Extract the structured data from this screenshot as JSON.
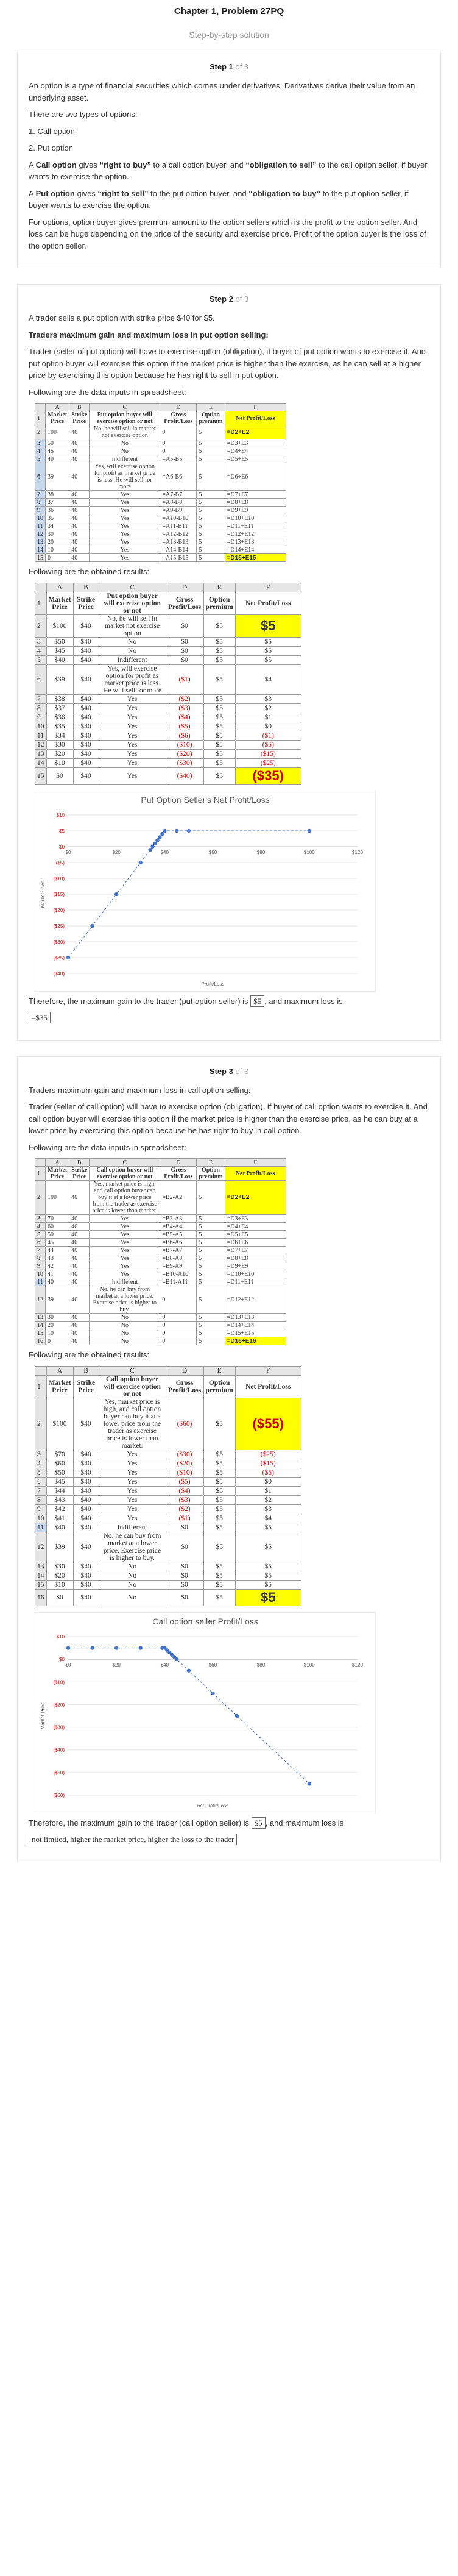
{
  "header": {
    "title": "Chapter 1, Problem 27PQ",
    "subtitle": "Step-by-step solution"
  },
  "step1": {
    "label": "Step 1",
    "of": "of 3",
    "p1": "An option is a type of financial securities which comes under derivatives. Derivatives derive their value from an underlying asset.",
    "p2": "There are two types of options:",
    "p3": "1. Call option",
    "p4": "2. Put option",
    "p5a": "A ",
    "p5b": "Call option",
    "p5c": " gives ",
    "p5d": "“right to buy”",
    "p5e": " to a call option buyer, and ",
    "p5f": "“obligation to sell”",
    "p5g": " to the call option seller, if buyer wants to exercise the option.",
    "p6a": "A ",
    "p6b": "Put option",
    "p6c": " gives ",
    "p6d": "“right to sell”",
    "p6e": " to the put option buyer, and ",
    "p6f": "“obligation to buy”",
    "p6g": " to the put option seller, if buyer wants to exercise the option.",
    "p7": "For options, option buyer gives premium amount to the option sellers which is the profit to the option seller. And loss can be huge depending on the price of the security and exercise price. Profit of the option buyer is the loss of the option seller."
  },
  "step2": {
    "label": "Step 2",
    "of": "of 3",
    "p1": "A trader sells a put option with strike price $40 for $5.",
    "p2": "Traders maximum gain and maximum loss in put option selling:",
    "p3": "Trader (seller of put option) will have to exercise option (obligation), if buyer of put option wants to exercise it. And put option buyer will exercise this option if the market price is higher than the exercise, as he can sell at a higher price by exercising this option because he has right to sell in put option.",
    "p4": "Following are the data inputs in spreadsheet:",
    "p5": "Following are the obtained results:",
    "p6a": "Therefore, the maximum gain to the trader (put option seller) is ",
    "p6b": "$5",
    "p6c": ", and maximum loss is",
    "p6d": "–$35",
    "formula_table": {
      "cols": [
        "A",
        "B",
        "C",
        "D",
        "E",
        "F"
      ],
      "head": [
        "Market Price",
        "Strike Price",
        "Put option buyer will exercise option or not",
        "Gross Profit/Loss",
        "Option premium",
        "Net Profit/Loss"
      ],
      "rows": [
        [
          "2",
          "100",
          "40",
          "No, he will sell in market not exercise option",
          "0",
          "5",
          "=D2+E2"
        ],
        [
          "3",
          "50",
          "40",
          "No",
          "0",
          "5",
          "=D3+E3"
        ],
        [
          "4",
          "45",
          "40",
          "No",
          "0",
          "5",
          "=D4+E4"
        ],
        [
          "5",
          "40",
          "40",
          "Indifferent",
          "=A5-B5",
          "5",
          "=D5+E5"
        ],
        [
          "6",
          "39",
          "40",
          "Yes, will exercise option for profit as market price is less. He will sell for more",
          "=A6-B6",
          "5",
          "=D6+E6"
        ],
        [
          "7",
          "38",
          "40",
          "Yes",
          "=A7-B7",
          "5",
          "=D7+E7"
        ],
        [
          "8",
          "37",
          "40",
          "Yes",
          "=A8-B8",
          "5",
          "=D8+E8"
        ],
        [
          "9",
          "36",
          "40",
          "Yes",
          "=A9-B9",
          "5",
          "=D9+E9"
        ],
        [
          "10",
          "35",
          "40",
          "Yes",
          "=A10-B10",
          "5",
          "=D10+E10"
        ],
        [
          "11",
          "34",
          "40",
          "Yes",
          "=A11-B11",
          "5",
          "=D11+E11"
        ],
        [
          "12",
          "30",
          "40",
          "Yes",
          "=A12-B12",
          "5",
          "=D12+E12"
        ],
        [
          "13",
          "20",
          "40",
          "Yes",
          "=A13-B13",
          "5",
          "=D13+E13"
        ],
        [
          "14",
          "10",
          "40",
          "Yes",
          "=A14-B14",
          "5",
          "=D14+E14"
        ],
        [
          "15",
          "0",
          "40",
          "Yes",
          "=A15-B15",
          "5",
          "=D15+E15"
        ]
      ]
    },
    "result_table": {
      "cols": [
        "A",
        "B",
        "C",
        "D",
        "E",
        "F"
      ],
      "head": [
        "Market Price",
        "Strike Price",
        "Put option buyer will exercise option or not",
        "Gross Profit/Loss",
        "Option premium",
        "Net Profit/Loss"
      ],
      "rows": [
        [
          "2",
          "$100",
          "$40",
          "No, he will sell in market not exercise option",
          "$0",
          "$5",
          "$5"
        ],
        [
          "3",
          "$50",
          "$40",
          "No",
          "$0",
          "$5",
          "$5"
        ],
        [
          "4",
          "$45",
          "$40",
          "No",
          "$0",
          "$5",
          "$5"
        ],
        [
          "5",
          "$40",
          "$40",
          "Indifferent",
          "$0",
          "$5",
          "$5"
        ],
        [
          "6",
          "$39",
          "$40",
          "Yes, will exercise option for profit as market price is less. He will sell for more",
          "($1)",
          "$5",
          "$4"
        ],
        [
          "7",
          "$38",
          "$40",
          "Yes",
          "($2)",
          "$5",
          "$3"
        ],
        [
          "8",
          "$37",
          "$40",
          "Yes",
          "($3)",
          "$5",
          "$2"
        ],
        [
          "9",
          "$36",
          "$40",
          "Yes",
          "($4)",
          "$5",
          "$1"
        ],
        [
          "10",
          "$35",
          "$40",
          "Yes",
          "($5)",
          "$5",
          "$0"
        ],
        [
          "11",
          "$34",
          "$40",
          "Yes",
          "($6)",
          "$5",
          "($1)"
        ],
        [
          "12",
          "$30",
          "$40",
          "Yes",
          "($10)",
          "$5",
          "($5)"
        ],
        [
          "13",
          "$20",
          "$40",
          "Yes",
          "($20)",
          "$5",
          "($15)"
        ],
        [
          "14",
          "$10",
          "$40",
          "Yes",
          "($30)",
          "$5",
          "($25)"
        ],
        [
          "15",
          "$0",
          "$40",
          "Yes",
          "($40)",
          "$5",
          "($35)"
        ]
      ]
    }
  },
  "step3": {
    "label": "Step 3",
    "of": "of 3",
    "p1": "Traders maximum gain and maximum loss in call option selling:",
    "p2": "Trader (seller of call option) will have to exercise option (obligation), if buyer of call option wants to exercise it. And call option buyer will exercise this option if the market price is higher than the exercise price, as he can buy at a lower price by exercising this option because he has right to buy in call option.",
    "p3": "Following are the data inputs in spreadsheet:",
    "p4": "Following are the obtained results:",
    "p5a": "Therefore, the maximum gain to the trader (call option seller) is ",
    "p5b": "$5",
    "p5c": ", and maximum loss is",
    "p5d": "not limited, higher the market price, higher the loss to the trader",
    "formula_table": {
      "cols": [
        "A",
        "B",
        "C",
        "D",
        "E",
        "F"
      ],
      "head": [
        "Market Price",
        "Strike Price",
        "Call option buyer will exercise option or not",
        "Gross Profit/Loss",
        "Option premium",
        "Net Profit/Loss"
      ],
      "rows": [
        [
          "2",
          "100",
          "40",
          "Yes, market price is high, and call option buyer can buy it at a lower price from the trader as exercise price is lower than market.",
          "=B2-A2",
          "5",
          "=D2+E2"
        ],
        [
          "3",
          "70",
          "40",
          "Yes",
          "=B3-A3",
          "5",
          "=D3+E3"
        ],
        [
          "4",
          "60",
          "40",
          "Yes",
          "=B4-A4",
          "5",
          "=D4+E4"
        ],
        [
          "5",
          "50",
          "40",
          "Yes",
          "=B5-A5",
          "5",
          "=D5+E5"
        ],
        [
          "6",
          "45",
          "40",
          "Yes",
          "=B6-A6",
          "5",
          "=D6+E6"
        ],
        [
          "7",
          "44",
          "40",
          "Yes",
          "=B7-A7",
          "5",
          "=D7+E7"
        ],
        [
          "8",
          "43",
          "40",
          "Yes",
          "=B8-A8",
          "5",
          "=D8+E8"
        ],
        [
          "9",
          "42",
          "40",
          "Yes",
          "=B9-A9",
          "5",
          "=D9+E9"
        ],
        [
          "10",
          "41",
          "40",
          "Yes",
          "=B10-A10",
          "5",
          "=D10+E10"
        ],
        [
          "11",
          "40",
          "40",
          "Indifferent",
          "=B11-A11",
          "5",
          "=D11+E11"
        ],
        [
          "12",
          "39",
          "40",
          "No, he can buy from market at a lower price. Exercise price is higher to buy.",
          "0",
          "5",
          "=D12+E12"
        ],
        [
          "13",
          "30",
          "40",
          "No",
          "0",
          "5",
          "=D13+E13"
        ],
        [
          "14",
          "20",
          "40",
          "No",
          "0",
          "5",
          "=D14+E14"
        ],
        [
          "15",
          "10",
          "40",
          "No",
          "0",
          "5",
          "=D15+E15"
        ],
        [
          "16",
          "0",
          "40",
          "No",
          "0",
          "5",
          "=D16+E16"
        ]
      ]
    },
    "result_table": {
      "cols": [
        "A",
        "B",
        "C",
        "D",
        "E",
        "F"
      ],
      "head": [
        "Market Price",
        "Strike Price",
        "Call option buyer will exercise option or not",
        "Gross Profit/Loss",
        "Option premium",
        "Net Profit/Loss"
      ],
      "rows": [
        [
          "2",
          "$100",
          "$40",
          "Yes, market price is high, and call option buyer can buy it at a lower price from the trader as exercise price is lower than market.",
          "($60)",
          "$5",
          "($55)"
        ],
        [
          "3",
          "$70",
          "$40",
          "Yes",
          "($30)",
          "$5",
          "($25)"
        ],
        [
          "4",
          "$60",
          "$40",
          "Yes",
          "($20)",
          "$5",
          "($15)"
        ],
        [
          "5",
          "$50",
          "$40",
          "Yes",
          "($10)",
          "$5",
          "($5)"
        ],
        [
          "6",
          "$45",
          "$40",
          "Yes",
          "($5)",
          "$5",
          "$0"
        ],
        [
          "7",
          "$44",
          "$40",
          "Yes",
          "($4)",
          "$5",
          "$1"
        ],
        [
          "8",
          "$43",
          "$40",
          "Yes",
          "($3)",
          "$5",
          "$2"
        ],
        [
          "9",
          "$42",
          "$40",
          "Yes",
          "($2)",
          "$5",
          "$3"
        ],
        [
          "10",
          "$41",
          "$40",
          "Yes",
          "($1)",
          "$5",
          "$4"
        ],
        [
          "11",
          "$40",
          "$40",
          "Indifferent",
          "$0",
          "$5",
          "$5"
        ],
        [
          "12",
          "$39",
          "$40",
          "No, he can buy from market at a lower price. Exercise price is higher to buy.",
          "$0",
          "$5",
          "$5"
        ],
        [
          "13",
          "$30",
          "$40",
          "No",
          "$0",
          "$5",
          "$5"
        ],
        [
          "14",
          "$20",
          "$40",
          "No",
          "$0",
          "$5",
          "$5"
        ],
        [
          "15",
          "$10",
          "$40",
          "No",
          "$0",
          "$5",
          "$5"
        ],
        [
          "16",
          "$0",
          "$40",
          "No",
          "$0",
          "$5",
          "$5"
        ]
      ]
    }
  },
  "chart_data": [
    {
      "type": "scatter",
      "title": "Put Option Seller's Net Profit/Loss",
      "xlabel": "Profit/Loss",
      "ylabel": "Market Price",
      "xlim": [
        0,
        120
      ],
      "ylim": [
        -40,
        10
      ],
      "xticks": [
        "$0",
        "$20",
        "$40",
        "$60",
        "$80",
        "$100",
        "$120"
      ],
      "yticks": [
        "$10",
        "$5",
        "$0",
        "($5)",
        "($10)",
        "($15)",
        "($20)",
        "($25)",
        "($30)",
        "($35)",
        "($40)"
      ],
      "color": "#4472c4",
      "x": [
        100,
        50,
        45,
        40,
        39,
        38,
        37,
        36,
        35,
        34,
        30,
        20,
        10,
        0
      ],
      "y": [
        5,
        5,
        5,
        5,
        4,
        3,
        2,
        1,
        0,
        -1,
        -5,
        -15,
        -25,
        -35
      ]
    },
    {
      "type": "scatter",
      "title": "Call option seller Profit/Loss",
      "xlabel": "net Profit/Loss",
      "ylabel": "Market Price",
      "xlim": [
        0,
        120
      ],
      "ylim": [
        -60,
        10
      ],
      "xticks": [
        "$0",
        "$20",
        "$40",
        "$60",
        "$80",
        "$100",
        "$120"
      ],
      "yticks": [
        "$10",
        "$0",
        "($10)",
        "($20)",
        "($30)",
        "($40)",
        "($50)",
        "($60)"
      ],
      "color": "#4472c4",
      "x": [
        100,
        70,
        60,
        50,
        45,
        44,
        43,
        42,
        41,
        40,
        39,
        30,
        20,
        10,
        0
      ],
      "y": [
        -55,
        -25,
        -15,
        -5,
        0,
        1,
        2,
        3,
        4,
        5,
        5,
        5,
        5,
        5,
        5
      ]
    }
  ]
}
